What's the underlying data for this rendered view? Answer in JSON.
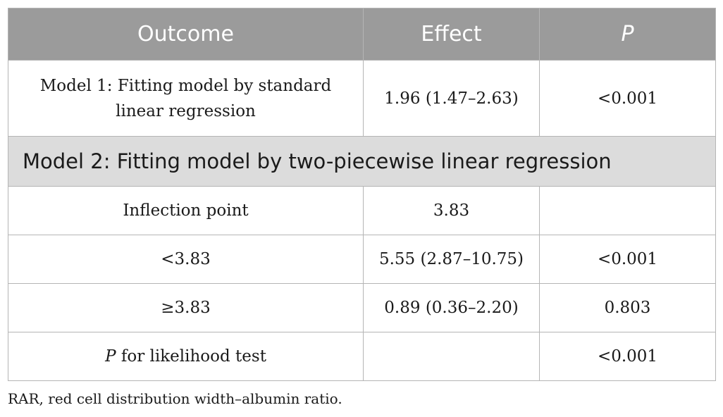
{
  "table": {
    "headers": {
      "outcome": "Outcome",
      "effect": "Effect",
      "p": "P"
    },
    "model1": {
      "label_line1": "Model 1: Fitting model by standard",
      "label_line2": "linear regression",
      "effect": "1.96 (1.47–2.63)",
      "p": "<0.001"
    },
    "model2_heading": "Model 2: Fitting model by two-piecewise linear regression",
    "rows": [
      {
        "outcome": "Inflection point",
        "effect": "3.83",
        "p": ""
      },
      {
        "outcome": "<3.83",
        "effect": "5.55 (2.87–10.75)",
        "p": "<0.001"
      },
      {
        "outcome": "≥3.83",
        "effect": "0.89 (0.36–2.20)",
        "p": "0.803"
      }
    ],
    "likelihood_row": {
      "label_italic": "P",
      "label_rest": " for likelihood test",
      "effect": "",
      "p": "<0.001"
    }
  },
  "footnote": "RAR, red cell distribution width–albumin ratio."
}
